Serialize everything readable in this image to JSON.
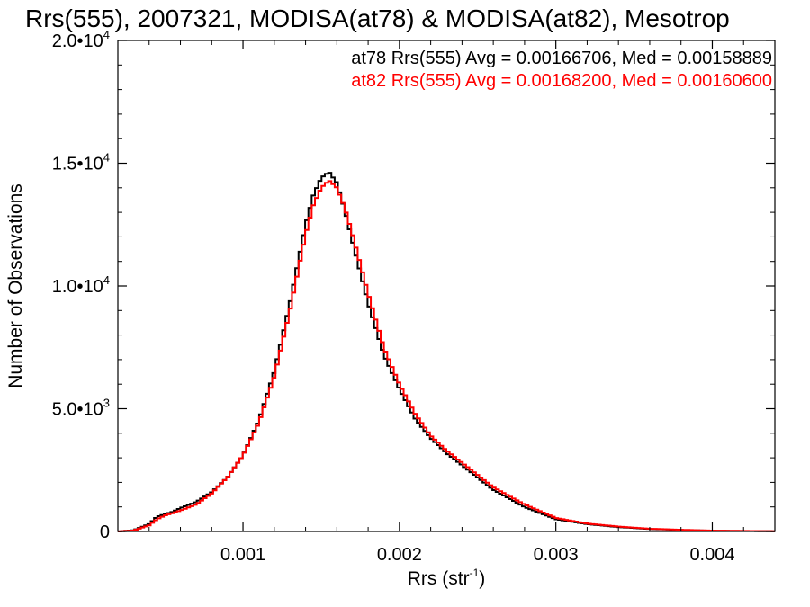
{
  "chart_data": {
    "type": "line",
    "title": "Rrs(555), 2007321, MODISA(at78) & MODISA(at82), Mesotrop",
    "xlabel": "Rrs (str",
    "xlabel_sup": "-1",
    "xlabel_close": ")",
    "ylabel": "Number of Observations",
    "xlim": [
      0.0002,
      0.0044
    ],
    "ylim": [
      0,
      20000
    ],
    "xticks": [
      {
        "value": 0.001,
        "label": "0.001"
      },
      {
        "value": 0.002,
        "label": "0.002"
      },
      {
        "value": 0.003,
        "label": "0.003"
      },
      {
        "value": 0.004,
        "label": "0.004"
      }
    ],
    "yticks": [
      {
        "value": 0,
        "label": "0",
        "exp": ""
      },
      {
        "value": 5000,
        "label": "5.0•10",
        "exp": "3"
      },
      {
        "value": 10000,
        "label": "1.0•10",
        "exp": "4"
      },
      {
        "value": 15000,
        "label": "1.5•10",
        "exp": "4"
      },
      {
        "value": 20000,
        "label": "2.0•10",
        "exp": "4"
      }
    ],
    "legend_placement": "top-right",
    "series": [
      {
        "name": "at78",
        "color": "#000000",
        "legend": "at78 Rrs(555) Avg = 0.00166706, Med = 0.00158889",
        "x": [
          0.0002,
          0.0003,
          0.0004,
          0.00045,
          0.0005,
          0.00055,
          0.0006,
          0.0007,
          0.0008,
          0.0009,
          0.001,
          0.0011,
          0.0012,
          0.0013,
          0.0014,
          0.00145,
          0.0015,
          0.00155,
          0.0016,
          0.00165,
          0.0017,
          0.0018,
          0.0019,
          0.002,
          0.0021,
          0.0022,
          0.0023,
          0.0024,
          0.0025,
          0.0026,
          0.0028,
          0.003,
          0.0032,
          0.0034,
          0.0036,
          0.0038,
          0.004,
          0.0044
        ],
        "y": [
          0,
          50,
          300,
          600,
          700,
          800,
          950,
          1200,
          1600,
          2200,
          3100,
          4500,
          6500,
          9300,
          12500,
          13700,
          14400,
          14650,
          14200,
          13100,
          11800,
          9300,
          7200,
          5800,
          4600,
          3800,
          3200,
          2700,
          2200,
          1700,
          1000,
          500,
          300,
          180,
          100,
          60,
          30,
          10
        ]
      },
      {
        "name": "at82",
        "color": "#ff0000",
        "legend": "at82 Rrs(555) Avg = 0.00168200, Med = 0.00160600",
        "x": [
          0.0002,
          0.0003,
          0.0004,
          0.00045,
          0.0005,
          0.00055,
          0.0006,
          0.0007,
          0.0008,
          0.0009,
          0.001,
          0.0011,
          0.0012,
          0.0013,
          0.0014,
          0.00145,
          0.0015,
          0.00155,
          0.0016,
          0.00165,
          0.0017,
          0.0018,
          0.0019,
          0.002,
          0.0021,
          0.0022,
          0.0023,
          0.0024,
          0.0025,
          0.0026,
          0.0028,
          0.003,
          0.0032,
          0.0034,
          0.0036,
          0.0038,
          0.004,
          0.0044
        ],
        "y": [
          0,
          40,
          250,
          500,
          650,
          750,
          850,
          1100,
          1550,
          2200,
          3100,
          4400,
          6300,
          9000,
          12100,
          13300,
          14000,
          14300,
          14000,
          13200,
          12100,
          9700,
          7500,
          6000,
          4800,
          3900,
          3300,
          2800,
          2300,
          1800,
          1100,
          550,
          320,
          200,
          110,
          70,
          35,
          10
        ]
      }
    ]
  }
}
